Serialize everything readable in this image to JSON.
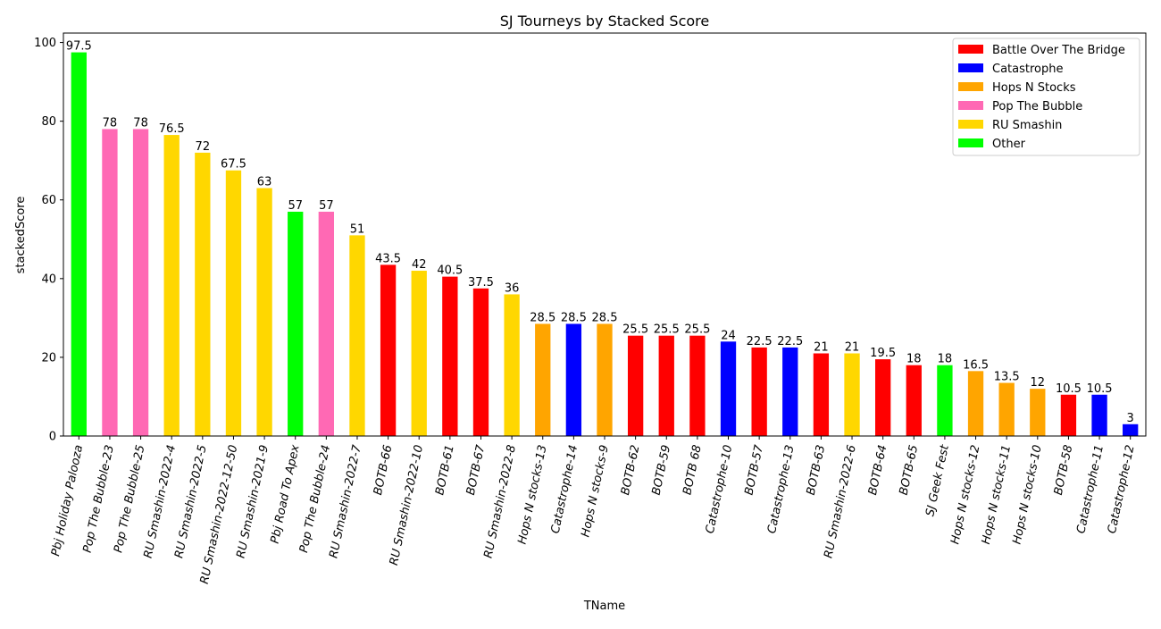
{
  "chart_data": {
    "type": "bar",
    "title": "SJ Tourneys by Stacked Score",
    "xlabel": "TName",
    "ylabel": "stackedScore",
    "ylim": [
      0,
      102.4
    ],
    "yticks": [
      0,
      20,
      40,
      60,
      80,
      100
    ],
    "grid": false,
    "legend_position": "top-right",
    "legend": [
      {
        "name": "Battle Over The Bridge",
        "color": "#ff0000"
      },
      {
        "name": "Catastrophe",
        "color": "#0000ff"
      },
      {
        "name": "Hops N Stocks",
        "color": "#ffa500"
      },
      {
        "name": "Pop The Bubble",
        "color": "#ff69b4"
      },
      {
        "name": "RU Smashin",
        "color": "#ffd700"
      },
      {
        "name": "Other",
        "color": "#00ff00"
      }
    ],
    "categories": [
      "Pbj Holiday Palooza",
      "Pop The Bubble-23",
      "Pop The Bubble-25",
      "RU Smashin-2022-4",
      "RU Smashin-2022-5",
      "RU Smashin-2022-12-50",
      "RU Smashin-2021-9",
      "Pbj Road To Apex",
      "Pop The Bubble-24",
      "RU Smashin-2022-7",
      "BOTB-66",
      "RU Smashin-2022-10",
      "BOTB-61",
      "BOTB-67",
      "RU Smashin-2022-8",
      "Hops N stocks-13",
      "Catastrophe-14",
      "Hops N stocks-9",
      "BOTB-62",
      "BOTB-59",
      "BOTB 68",
      "Catastrophe-10",
      "BOTB-57",
      "Catastrophe-13",
      "BOTB-63",
      "RU Smashin-2022-6",
      "BOTB-64",
      "BOTB-65",
      "SJ Geek Fest",
      "Hops N stocks-12",
      "Hops N stocks-11",
      "Hops N stocks-10",
      "BOTB-58",
      "Catastrophe-11",
      "Catastrophe-12"
    ],
    "values": [
      97.5,
      78,
      78,
      76.5,
      72,
      67.5,
      63,
      57,
      57,
      51,
      43.5,
      42,
      40.5,
      37.5,
      36,
      28.5,
      28.5,
      28.5,
      25.5,
      25.5,
      25.5,
      24,
      22.5,
      22.5,
      21,
      21,
      19.5,
      18,
      18,
      16.5,
      13.5,
      12,
      10.5,
      10.5,
      3
    ],
    "value_labels": [
      "97.5",
      "78",
      "78",
      "76.5",
      "72",
      "67.5",
      "63",
      "57",
      "57",
      "51",
      "43.5",
      "42",
      "40.5",
      "37.5",
      "36",
      "28.5",
      "28.5",
      "28.5",
      "25.5",
      "25.5",
      "25.5",
      "24",
      "22.5",
      "22.5",
      "21",
      "21",
      "19.5",
      "18",
      "18",
      "16.5",
      "13.5",
      "12",
      "10.5",
      "10.5",
      "3"
    ],
    "groups": [
      5,
      3,
      3,
      4,
      4,
      4,
      4,
      5,
      3,
      4,
      0,
      4,
      0,
      0,
      4,
      2,
      1,
      2,
      0,
      0,
      0,
      1,
      0,
      1,
      0,
      4,
      0,
      0,
      5,
      2,
      2,
      2,
      0,
      1,
      1
    ]
  }
}
